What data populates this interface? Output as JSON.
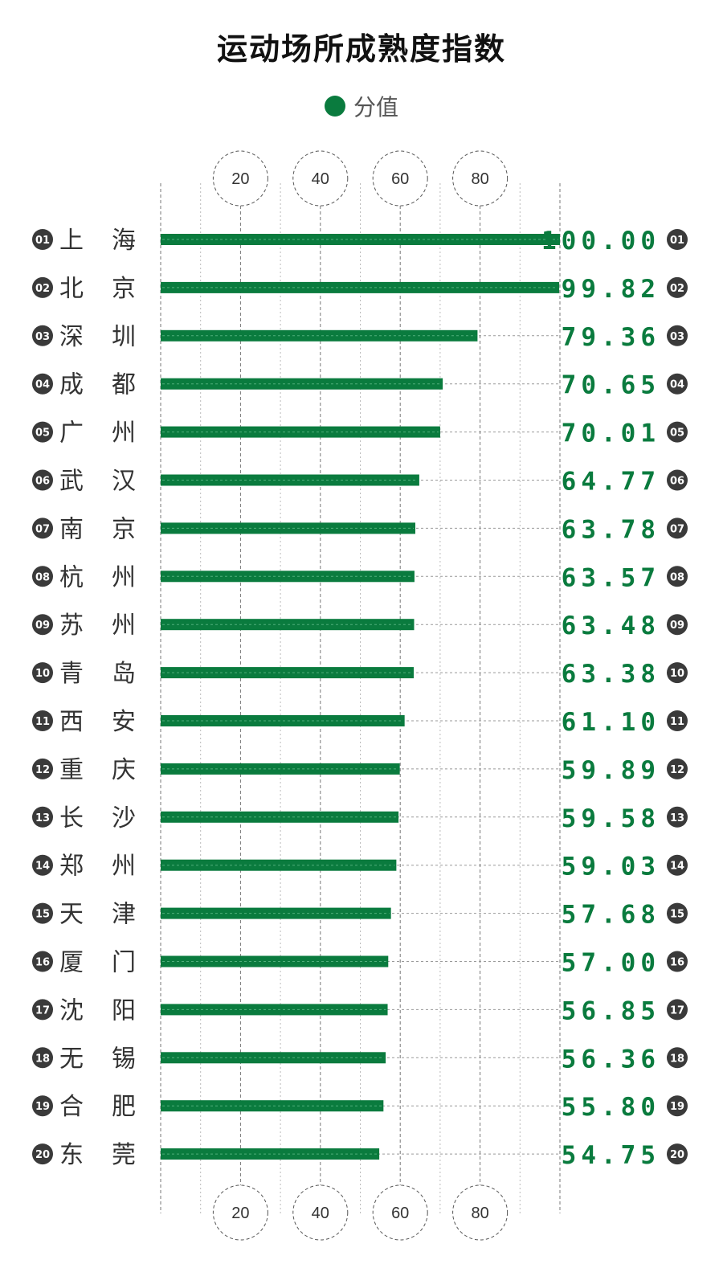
{
  "title": "运动场所成熟度指数",
  "legend": {
    "label": "分值",
    "color": "#0a7b3e"
  },
  "colors": {
    "bar": "#0a7b3e",
    "value": "#0a7b3e",
    "badge": "#3a3a3a"
  },
  "chart_data": {
    "type": "bar",
    "orientation": "horizontal",
    "title": "运动场所成熟度指数",
    "series": [
      {
        "name": "分值"
      }
    ],
    "xlim": [
      0,
      100
    ],
    "xticks": [
      "20",
      "40",
      "60",
      "80"
    ],
    "grid": true,
    "legend_position": "top-center",
    "rows": [
      {
        "rank": "01",
        "city": [
          "上",
          "海"
        ],
        "value": 100.0,
        "label": "100.00"
      },
      {
        "rank": "02",
        "city": [
          "北",
          "京"
        ],
        "value": 99.82,
        "label": "99.82"
      },
      {
        "rank": "03",
        "city": [
          "深",
          "圳"
        ],
        "value": 79.36,
        "label": "79.36"
      },
      {
        "rank": "04",
        "city": [
          "成",
          "都"
        ],
        "value": 70.65,
        "label": "70.65"
      },
      {
        "rank": "05",
        "city": [
          "广",
          "州"
        ],
        "value": 70.01,
        "label": "70.01"
      },
      {
        "rank": "06",
        "city": [
          "武",
          "汉"
        ],
        "value": 64.77,
        "label": "64.77"
      },
      {
        "rank": "07",
        "city": [
          "南",
          "京"
        ],
        "value": 63.78,
        "label": "63.78"
      },
      {
        "rank": "08",
        "city": [
          "杭",
          "州"
        ],
        "value": 63.57,
        "label": "63.57"
      },
      {
        "rank": "09",
        "city": [
          "苏",
          "州"
        ],
        "value": 63.48,
        "label": "63.48"
      },
      {
        "rank": "10",
        "city": [
          "青",
          "岛"
        ],
        "value": 63.38,
        "label": "63.38"
      },
      {
        "rank": "11",
        "city": [
          "西",
          "安"
        ],
        "value": 61.1,
        "label": "61.10"
      },
      {
        "rank": "12",
        "city": [
          "重",
          "庆"
        ],
        "value": 59.89,
        "label": "59.89"
      },
      {
        "rank": "13",
        "city": [
          "长",
          "沙"
        ],
        "value": 59.58,
        "label": "59.58"
      },
      {
        "rank": "14",
        "city": [
          "郑",
          "州"
        ],
        "value": 59.03,
        "label": "59.03"
      },
      {
        "rank": "15",
        "city": [
          "天",
          "津"
        ],
        "value": 57.68,
        "label": "57.68"
      },
      {
        "rank": "16",
        "city": [
          "厦",
          "门"
        ],
        "value": 57.0,
        "label": "57.00"
      },
      {
        "rank": "17",
        "city": [
          "沈",
          "阳"
        ],
        "value": 56.85,
        "label": "56.85"
      },
      {
        "rank": "18",
        "city": [
          "无",
          "锡"
        ],
        "value": 56.36,
        "label": "56.36"
      },
      {
        "rank": "19",
        "city": [
          "合",
          "肥"
        ],
        "value": 55.8,
        "label": "55.80"
      },
      {
        "rank": "20",
        "city": [
          "东",
          "莞"
        ],
        "value": 54.75,
        "label": "54.75"
      }
    ]
  }
}
